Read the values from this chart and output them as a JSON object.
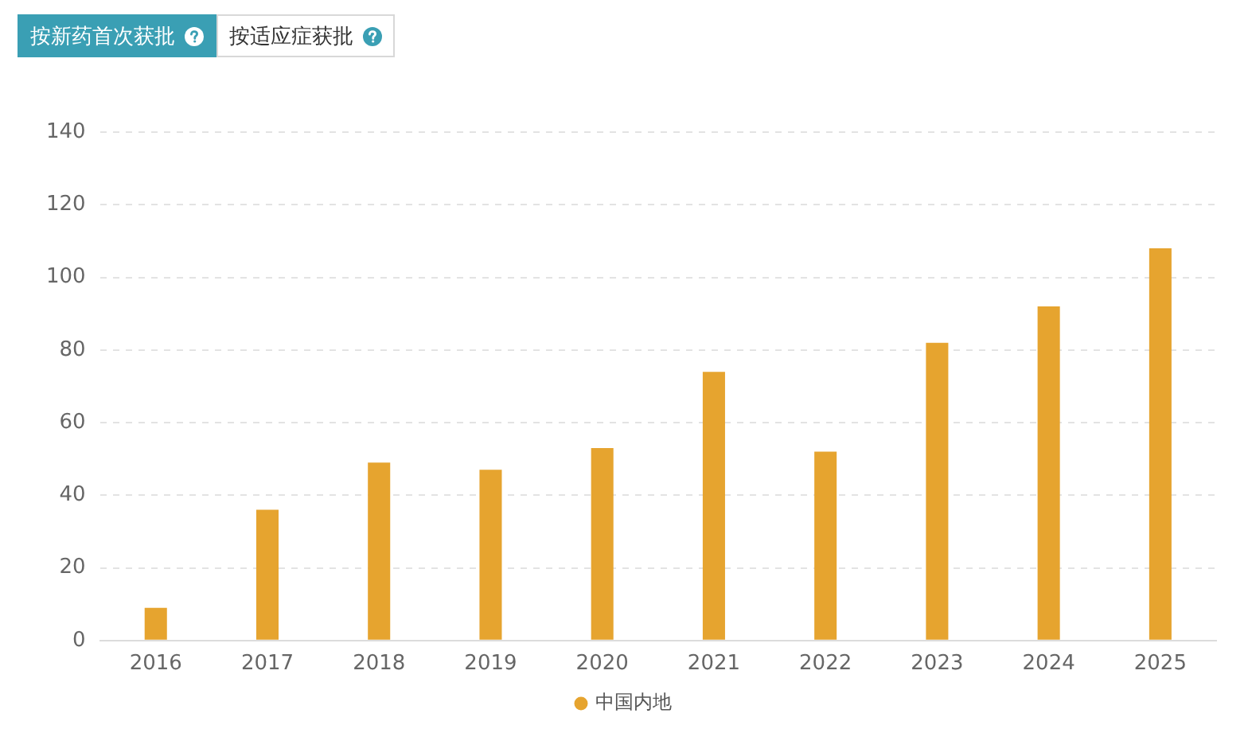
{
  "chart_data": {
    "type": "bar",
    "annotations": [
      "按新药首次获批",
      "按适应症获批"
    ],
    "categories": [
      "2016",
      "2017",
      "2018",
      "2019",
      "2020",
      "2021",
      "2022",
      "2023",
      "2024",
      "2025"
    ],
    "series": [
      {
        "name": "中国内地",
        "color": "#e6a42f",
        "values": [
          9,
          36,
          49,
          47,
          53,
          74,
          52,
          82,
          92,
          108
        ]
      }
    ],
    "ylim": [
      0,
      140
    ],
    "yticks": [
      0,
      20,
      40,
      60,
      80,
      100,
      120,
      140
    ],
    "grid": "y",
    "legend": "bottom"
  }
}
